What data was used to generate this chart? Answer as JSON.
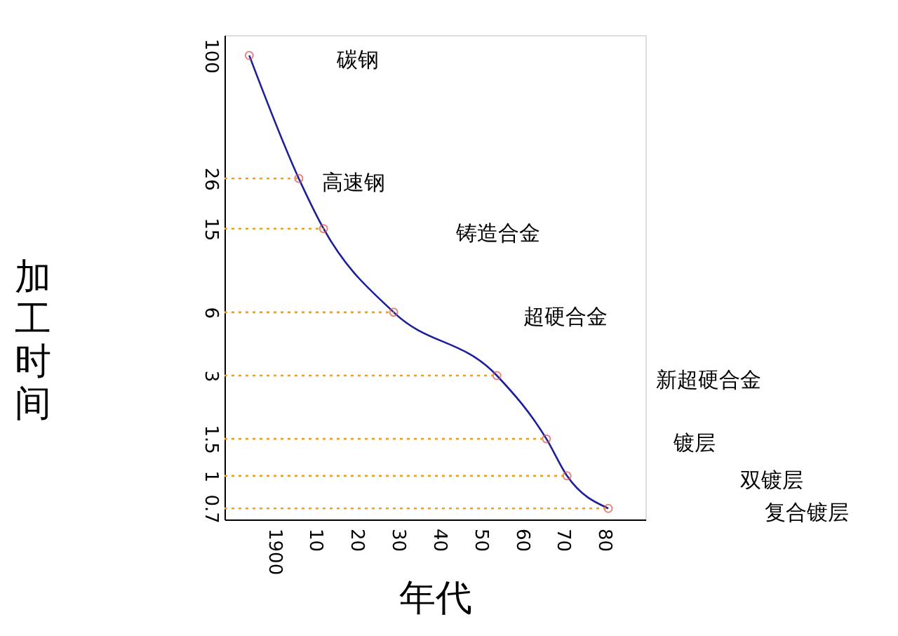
{
  "chart_data": {
    "type": "line",
    "xlabel": "年代",
    "ylabel": "加工时间",
    "log": "y",
    "grid": false,
    "xlim": [
      1888,
      1990
    ],
    "ylim": [
      0.62,
      125
    ],
    "xticks": [
      1900,
      {
        "value": 1910,
        "label": "10"
      },
      {
        "value": 1920,
        "label": "20"
      },
      {
        "value": 1930,
        "label": "30"
      },
      {
        "value": 1940,
        "label": "40"
      },
      {
        "value": 1950,
        "label": "50"
      },
      {
        "value": 1960,
        "label": "60"
      },
      {
        "value": 1970,
        "label": "70"
      },
      {
        "value": 1980,
        "label": "80"
      }
    ],
    "yticks": [
      100,
      26,
      15,
      6,
      3,
      1.5,
      1,
      0.7
    ],
    "series": [
      {
        "type": "line",
        "color": "#1f1f9a",
        "marker": "none",
        "line_style": "solid",
        "x": [
          1894,
          1906,
          1912,
          1929,
          1954,
          1966,
          1971,
          1981
        ],
        "values": [
          100,
          26,
          15,
          6,
          3,
          1.5,
          1,
          0.7
        ]
      },
      {
        "type": "scatter",
        "color": "#d9534f",
        "marker": "circle",
        "x": [
          1894,
          1906,
          1912,
          1929,
          1954,
          1966,
          1971,
          1981
        ],
        "values": [
          100,
          26,
          15,
          6,
          3,
          1.5,
          1,
          0.7
        ]
      },
      {
        "type": "line",
        "color": "#f0a020",
        "marker": "none",
        "line_style": "dotted",
        "x": [
          1888,
          1906
        ],
        "values": [
          26,
          26
        ]
      },
      {
        "type": "line",
        "color": "#f0a020",
        "marker": "none",
        "line_style": "dotted",
        "x": [
          1888,
          1912
        ],
        "values": [
          15,
          15
        ]
      },
      {
        "type": "line",
        "color": "#f0a020",
        "marker": "none",
        "line_style": "dotted",
        "x": [
          1888,
          1929
        ],
        "values": [
          6,
          6
        ]
      },
      {
        "type": "line",
        "color": "#f0a020",
        "marker": "none",
        "line_style": "dotted",
        "x": [
          1888,
          1954
        ],
        "values": [
          3,
          3
        ]
      },
      {
        "type": "line",
        "color": "#f0a020",
        "marker": "none",
        "line_style": "dotted",
        "x": [
          1888,
          1966
        ],
        "values": [
          1.5,
          1.5
        ]
      },
      {
        "type": "line",
        "color": "#f0a020",
        "marker": "none",
        "line_style": "dotted",
        "x": [
          1888,
          1971
        ],
        "values": [
          1,
          1
        ]
      },
      {
        "type": "line",
        "color": "#f0a020",
        "marker": "none",
        "line_style": "dotted",
        "x": [
          1888,
          1981
        ],
        "values": [
          0.7,
          0.7
        ]
      }
    ],
    "annotations": [
      "碳钢",
      "高速钢",
      "铸造合金",
      "超硬合金",
      "新超硬合金",
      "镀层",
      "双镀层",
      "复合镀层"
    ]
  }
}
